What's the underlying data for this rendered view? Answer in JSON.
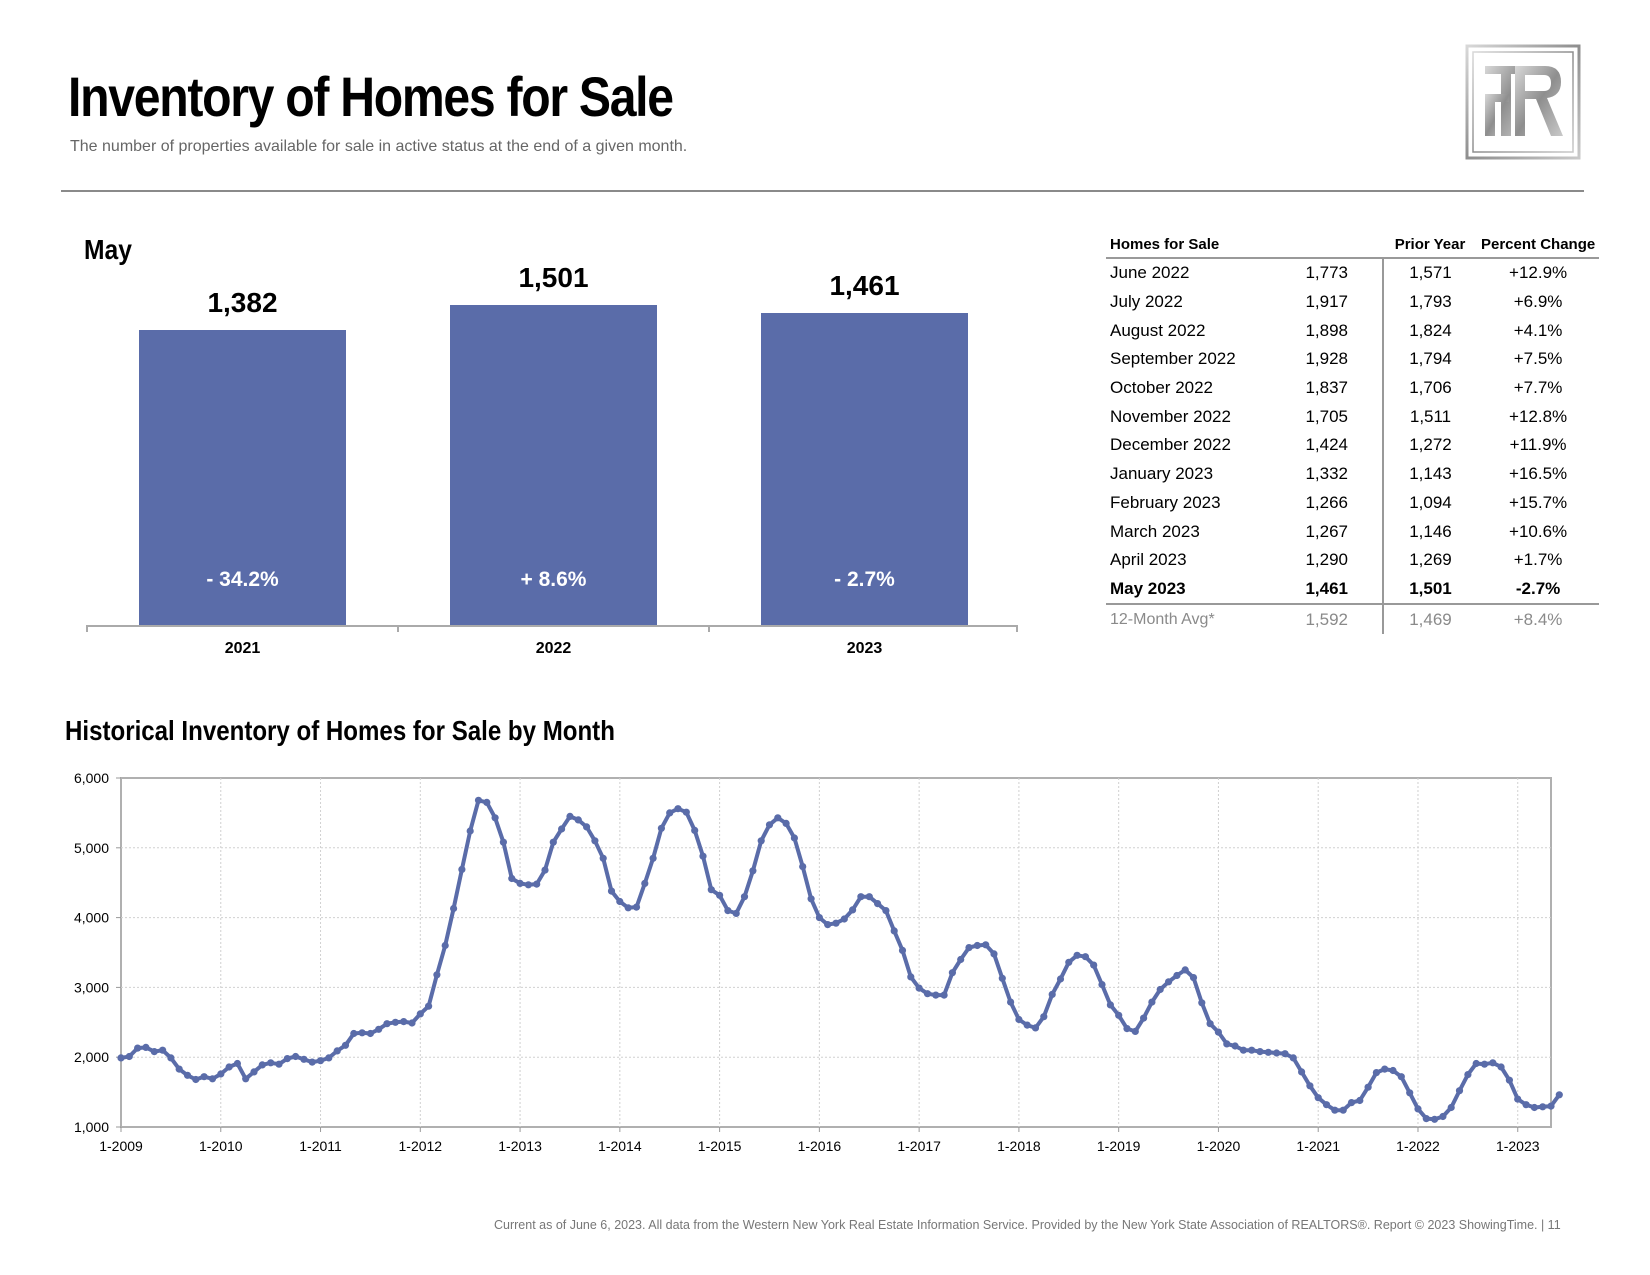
{
  "header": {
    "title": "Inventory of Homes for Sale",
    "subtitle": "The number of properties available for sale in active status at the end of a given month."
  },
  "logo": {
    "icon": "rtr-logo-icon"
  },
  "may_section": {
    "label": "May",
    "bars": [
      {
        "year": "2021",
        "value": 1382,
        "value_label": "1,382",
        "pct": "- 34.2%"
      },
      {
        "year": "2022",
        "value": 1501,
        "value_label": "1,501",
        "pct": "+ 8.6%"
      },
      {
        "year": "2023",
        "value": 1461,
        "value_label": "1,461",
        "pct": "- 2.7%"
      }
    ],
    "bar_color": "#5a6ca9"
  },
  "table": {
    "headers": {
      "month": "Homes for Sale",
      "value": "",
      "prior": "Prior Year",
      "pct": "Percent Change"
    },
    "rows": [
      {
        "month": "June 2022",
        "value": "1,773",
        "prior": "1,571",
        "pct": "+12.9%"
      },
      {
        "month": "July 2022",
        "value": "1,917",
        "prior": "1,793",
        "pct": "+6.9%"
      },
      {
        "month": "August 2022",
        "value": "1,898",
        "prior": "1,824",
        "pct": "+4.1%"
      },
      {
        "month": "September 2022",
        "value": "1,928",
        "prior": "1,794",
        "pct": "+7.5%"
      },
      {
        "month": "October 2022",
        "value": "1,837",
        "prior": "1,706",
        "pct": "+7.7%"
      },
      {
        "month": "November 2022",
        "value": "1,705",
        "prior": "1,511",
        "pct": "+12.8%"
      },
      {
        "month": "December 2022",
        "value": "1,424",
        "prior": "1,272",
        "pct": "+11.9%"
      },
      {
        "month": "January 2023",
        "value": "1,332",
        "prior": "1,143",
        "pct": "+16.5%"
      },
      {
        "month": "February 2023",
        "value": "1,266",
        "prior": "1,094",
        "pct": "+15.7%"
      },
      {
        "month": "March 2023",
        "value": "1,267",
        "prior": "1,146",
        "pct": "+10.6%"
      },
      {
        "month": "April 2023",
        "value": "1,290",
        "prior": "1,269",
        "pct": "+1.7%"
      },
      {
        "month": "May 2023",
        "value": "1,461",
        "prior": "1,501",
        "pct": "-2.7%"
      }
    ],
    "avg": {
      "month": "12-Month Avg*",
      "value": "1,592",
      "prior": "1,469",
      "pct": "+8.4%"
    }
  },
  "history": {
    "title": "Historical Inventory of Homes for Sale by Month"
  },
  "chart_data": [
    {
      "type": "bar",
      "title": "May",
      "categories": [
        "2021",
        "2022",
        "2023"
      ],
      "values": [
        1382,
        1501,
        1461
      ],
      "annotations": [
        "- 34.2%",
        "+ 8.6%",
        "- 2.7%"
      ],
      "ylim": [
        0,
        1700
      ]
    },
    {
      "type": "line",
      "title": "Historical Inventory of Homes for Sale by Month",
      "color": "#5a6ca9",
      "ylim": [
        1000,
        6000
      ],
      "y_ticks": [
        "1,000",
        "2,000",
        "3,000",
        "4,000",
        "5,000",
        "6,000"
      ],
      "x_ticks": [
        "1-2009",
        "1-2010",
        "1-2011",
        "1-2012",
        "1-2013",
        "1-2014",
        "1-2015",
        "1-2016",
        "1-2017",
        "1-2018",
        "1-2019",
        "1-2020",
        "1-2021",
        "1-2022",
        "1-2023"
      ],
      "grid": true,
      "start": "2009-01",
      "values": [
        1990,
        2010,
        2130,
        2140,
        2080,
        2100,
        1990,
        1830,
        1740,
        1680,
        1720,
        1690,
        1760,
        1860,
        1910,
        1690,
        1790,
        1890,
        1920,
        1900,
        1980,
        2010,
        1970,
        1930,
        1950,
        1990,
        2090,
        2170,
        2340,
        2350,
        2340,
        2400,
        2480,
        2500,
        2510,
        2490,
        2620,
        2730,
        3180,
        3600,
        4130,
        4690,
        5240,
        5680,
        5650,
        5430,
        5080,
        4560,
        4490,
        4470,
        4480,
        4680,
        5080,
        5270,
        5450,
        5400,
        5300,
        5100,
        4850,
        4380,
        4230,
        4140,
        4150,
        4490,
        4850,
        5280,
        5500,
        5560,
        5510,
        5250,
        4880,
        4400,
        4320,
        4100,
        4060,
        4300,
        4670,
        5100,
        5330,
        5430,
        5350,
        5140,
        4730,
        4270,
        4000,
        3900,
        3920,
        3980,
        4110,
        4300,
        4300,
        4200,
        4100,
        3810,
        3530,
        3150,
        2990,
        2910,
        2890,
        2890,
        3210,
        3400,
        3570,
        3600,
        3610,
        3480,
        3130,
        2790,
        2540,
        2460,
        2420,
        2580,
        2900,
        3120,
        3360,
        3460,
        3440,
        3320,
        3040,
        2750,
        2600,
        2410,
        2370,
        2560,
        2790,
        2970,
        3080,
        3170,
        3250,
        3140,
        2780,
        2480,
        2360,
        2190,
        2160,
        2100,
        2100,
        2080,
        2070,
        2060,
        2050,
        1990,
        1790,
        1590,
        1420,
        1320,
        1240,
        1240,
        1350,
        1380,
        1570,
        1780,
        1830,
        1810,
        1720,
        1490,
        1260,
        1120,
        1110,
        1150,
        1280,
        1520,
        1750,
        1910,
        1900,
        1920,
        1860,
        1670,
        1400,
        1320,
        1280,
        1290,
        1300,
        1461
      ]
    }
  ],
  "footer": {
    "text": "Current as of June 6, 2023. All data from the Western New York Real Estate Information Service. Provided by the New York State Association of REALTORS®. Report © 2023 ShowingTime.  |  11"
  }
}
